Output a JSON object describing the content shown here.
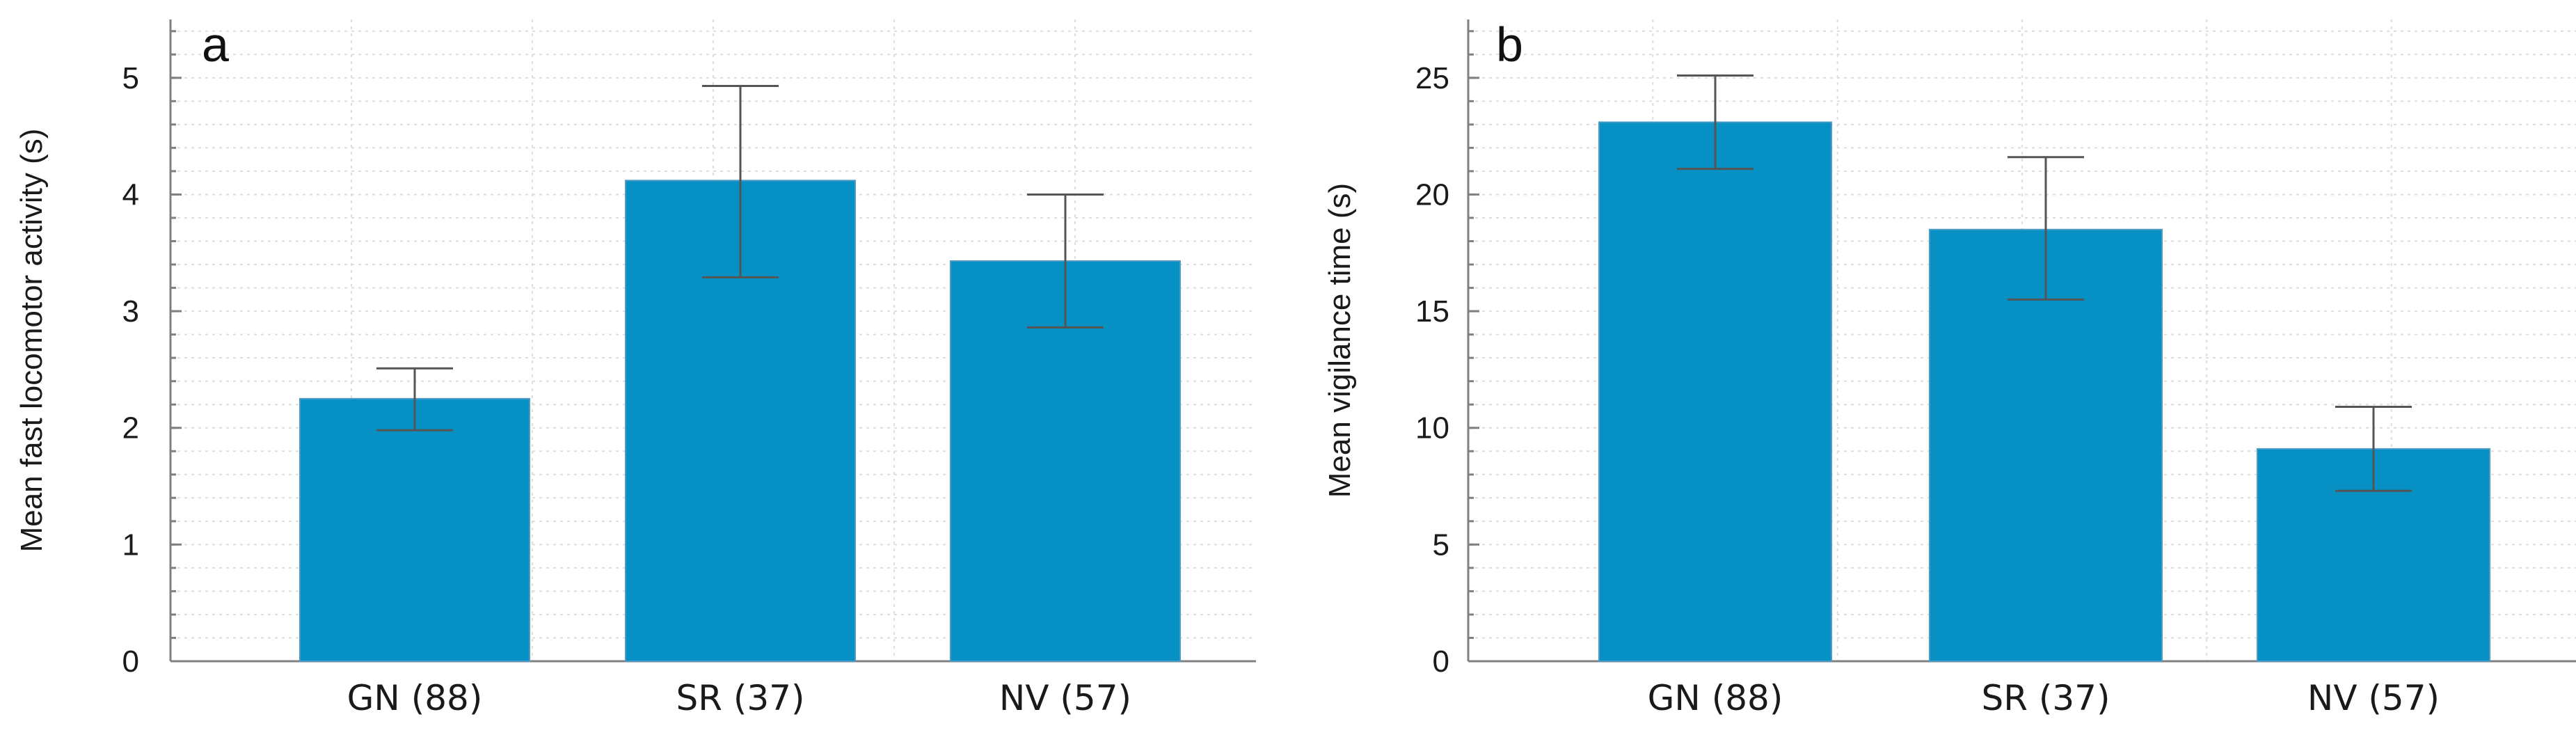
{
  "colors": {
    "bar": "#0790c4",
    "error": "#555555"
  },
  "chart_data": [
    {
      "type": "bar",
      "panel_label": "a",
      "ylabel": "Mean fast locomotor activity (s)",
      "categories": [
        "GN (88)",
        "SR (37)",
        "NV (57)"
      ],
      "values": [
        2.25,
        4.12,
        3.43
      ],
      "error_low": [
        1.98,
        3.29,
        2.86
      ],
      "error_high": [
        2.51,
        4.93,
        4.0
      ],
      "ylim": [
        0,
        5.5
      ],
      "yticks": [
        0,
        1,
        2,
        3,
        4,
        5
      ],
      "ytick_labels": [
        "0",
        "1",
        "2",
        "3",
        "4",
        "5"
      ],
      "grid": true
    },
    {
      "type": "bar",
      "panel_label": "b",
      "ylabel": "Mean vigilance time (s)",
      "categories": [
        "GN (88)",
        "SR (37)",
        "NV (57)"
      ],
      "values": [
        23.1,
        18.5,
        9.1
      ],
      "error_low": [
        21.1,
        15.5,
        7.3
      ],
      "error_high": [
        25.1,
        21.6,
        10.9
      ],
      "ylim": [
        0,
        27.5
      ],
      "yticks": [
        0,
        5,
        10,
        15,
        20,
        25
      ],
      "ytick_labels": [
        "0",
        "5",
        "10",
        "15",
        "20",
        "25"
      ],
      "grid": true
    }
  ]
}
